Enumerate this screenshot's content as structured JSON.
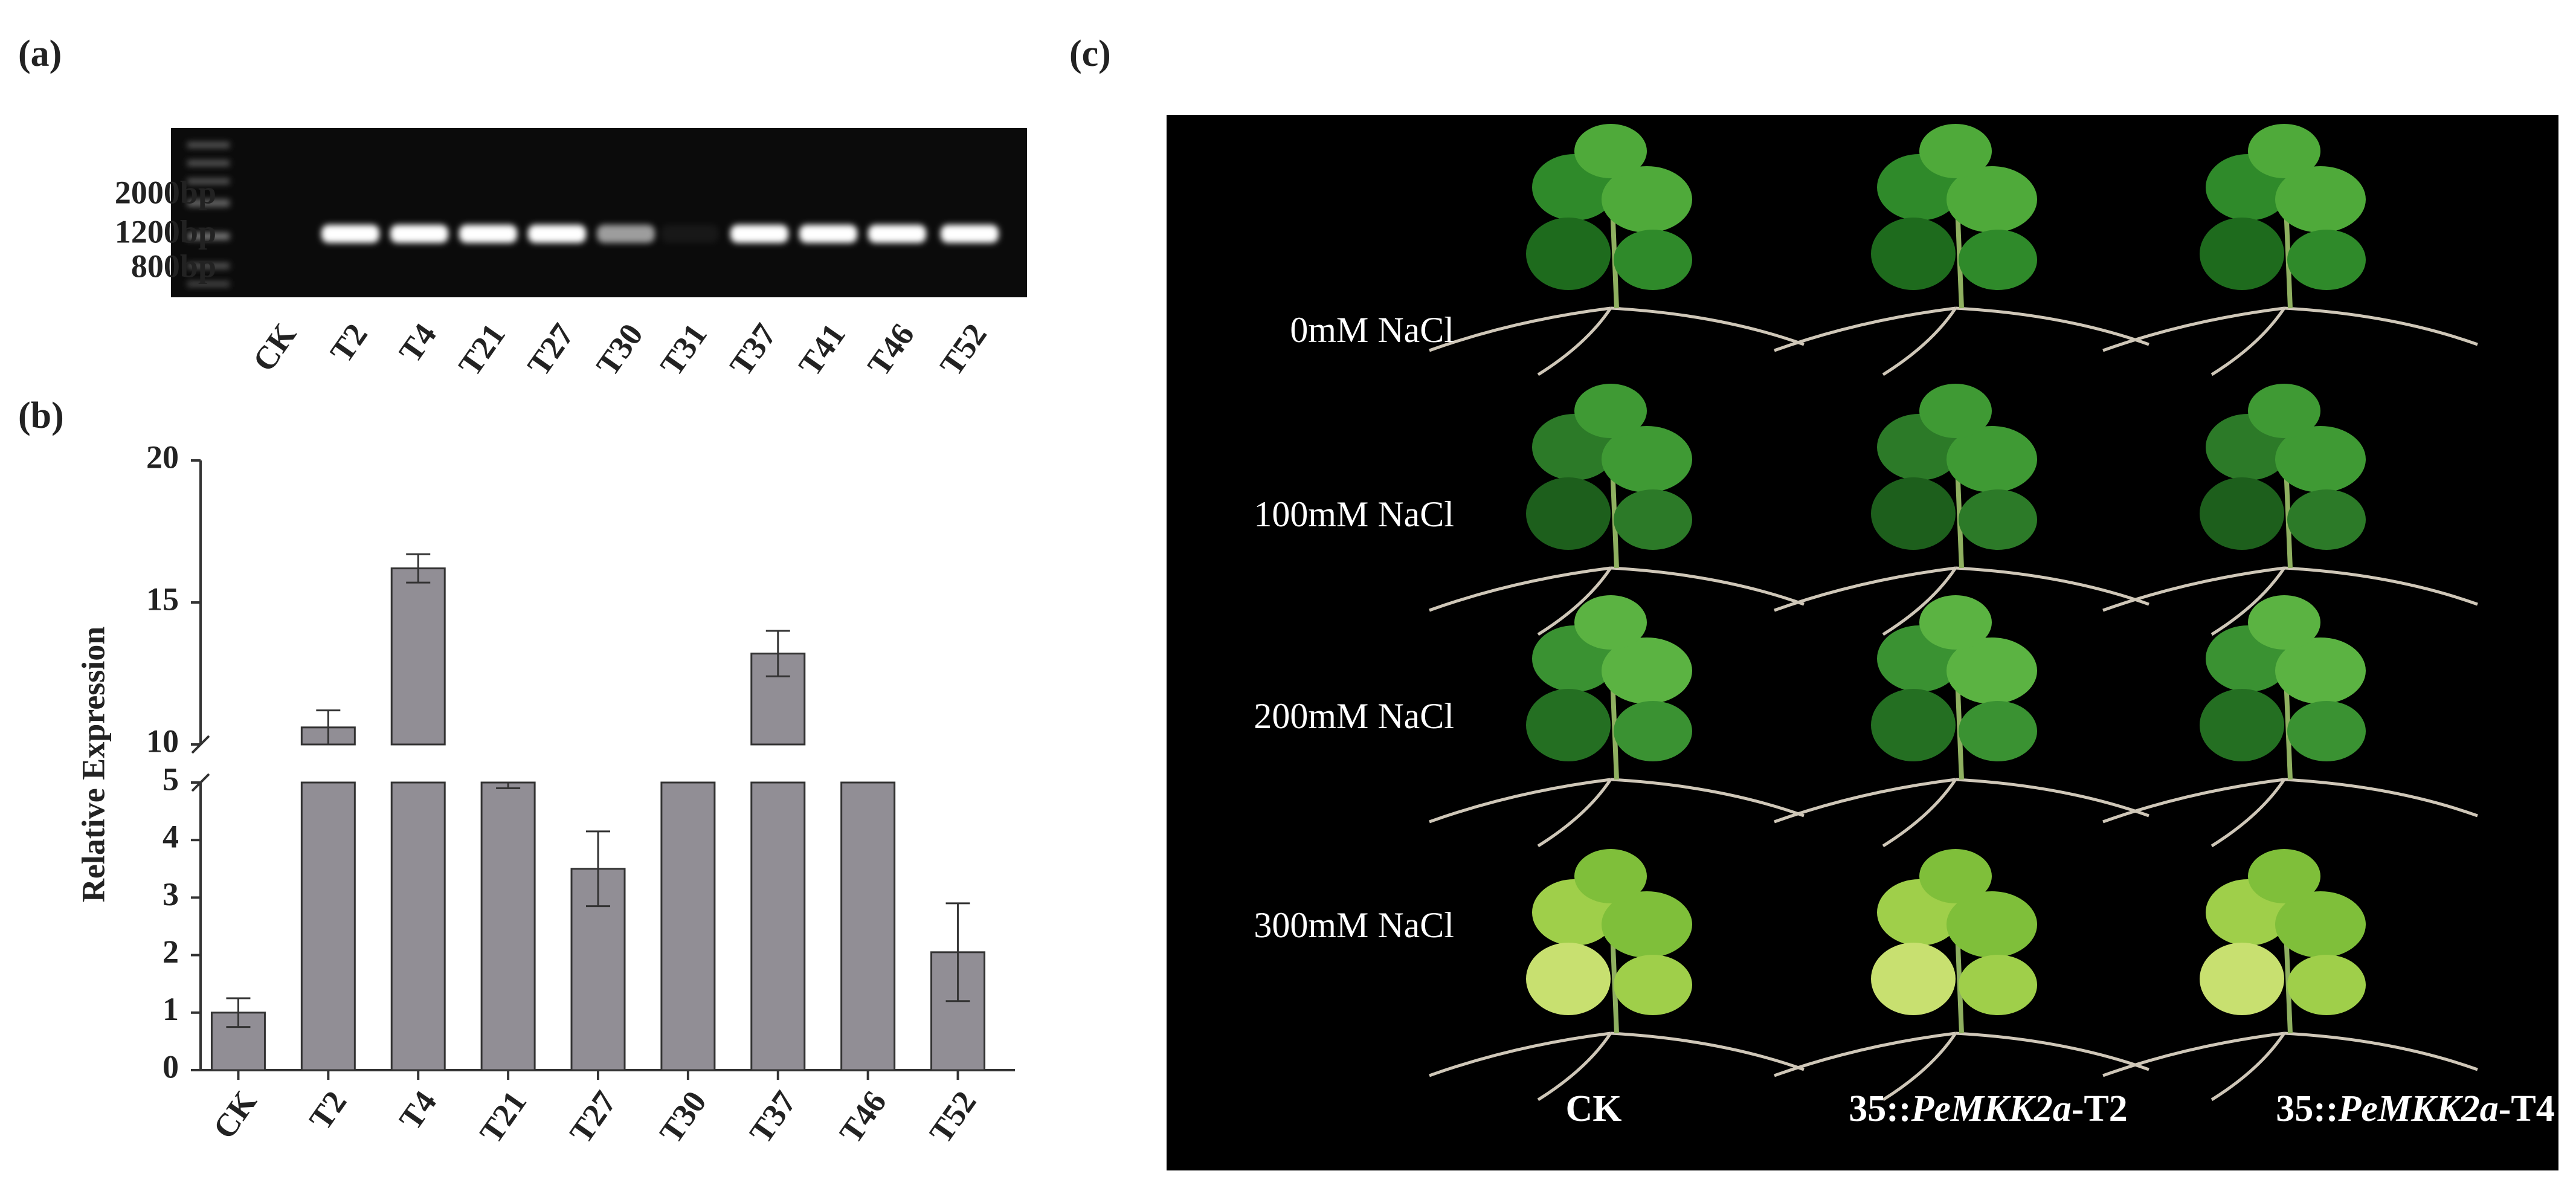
{
  "panels": {
    "a": {
      "label": "(a)",
      "ladder": [
        "2000bp",
        "1200bp",
        "800bp"
      ],
      "lanes": [
        "CK",
        "T2",
        "T4",
        "T21",
        "T27",
        "T30",
        "T31",
        "T37",
        "T41",
        "T46",
        "T52"
      ]
    },
    "b": {
      "label": "(b)"
    },
    "c": {
      "label": "(c)",
      "rows": [
        "0mM NaCl",
        "100mM NaCl",
        "200mM NaCl",
        "300mM NaCl"
      ],
      "columns": [
        {
          "text": "CK"
        },
        {
          "prefix": "35::",
          "italic": "PeMKK2a",
          "suffix": "-T2"
        },
        {
          "prefix": "35::",
          "italic": "PeMKK2a",
          "suffix": "-T4"
        }
      ]
    }
  },
  "chart_data": {
    "type": "bar",
    "y_label": "Relative Expression",
    "categories": [
      "CK",
      "T2",
      "T4",
      "T21",
      "T27",
      "T30",
      "T37",
      "T46",
      "T52"
    ],
    "values": [
      1.0,
      10.6,
      16.2,
      5.3,
      3.5,
      7.0,
      13.2,
      7.0,
      2.05
    ],
    "errors": [
      0.25,
      0.6,
      0.5,
      0.4,
      0.65,
      null,
      0.8,
      null,
      0.85
    ],
    "color": "#918e95",
    "ylim": [
      0,
      20
    ],
    "axis_break": [
      5,
      10
    ],
    "yticks": [
      0,
      1,
      2,
      3,
      4,
      5,
      10,
      15,
      20
    ]
  }
}
